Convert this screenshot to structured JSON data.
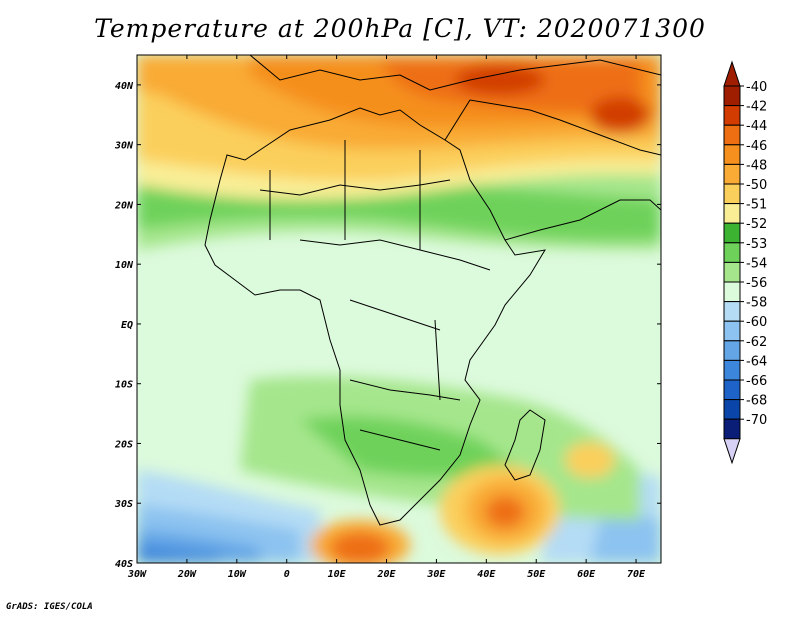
{
  "title": "Temperature at 200hPa [C], VT: 2020071300",
  "credit": "GrADS: IGES/COLA",
  "axes": {
    "lat_labels": [
      "40N",
      "30N",
      "20N",
      "10N",
      "EQ",
      "10S",
      "20S",
      "30S",
      "40S"
    ],
    "lat_values": [
      40,
      30,
      20,
      10,
      0,
      -10,
      -20,
      -30,
      -40
    ],
    "lon_labels": [
      "30W",
      "20W",
      "10W",
      "0",
      "10E",
      "20E",
      "30E",
      "40E",
      "50E",
      "60E",
      "70E"
    ],
    "lon_values": [
      -30,
      -20,
      -10,
      0,
      10,
      20,
      30,
      40,
      50,
      60,
      70
    ],
    "lon_range": [
      -30,
      75
    ],
    "lat_range": [
      -40,
      45
    ]
  },
  "colorbar": {
    "labels": [
      "-40",
      "-42",
      "-44",
      "-46",
      "-48",
      "-50",
      "-51",
      "-52",
      "-53",
      "-54",
      "-56",
      "-58",
      "-60",
      "-62",
      "-64",
      "-66",
      "-68",
      "-70"
    ],
    "colors": [
      "#a01e00",
      "#d23c00",
      "#ee6e12",
      "#f58f1e",
      "#f9ab36",
      "#fbcf5c",
      "#f9ee96",
      "#3cb432",
      "#6ed25a",
      "#a5e68c",
      "#dcfadc",
      "#b4dcf5",
      "#8cc3f0",
      "#64a5e6",
      "#3c87dc",
      "#1e64c8",
      "#0a46aa",
      "#0a1e78"
    ]
  }
}
